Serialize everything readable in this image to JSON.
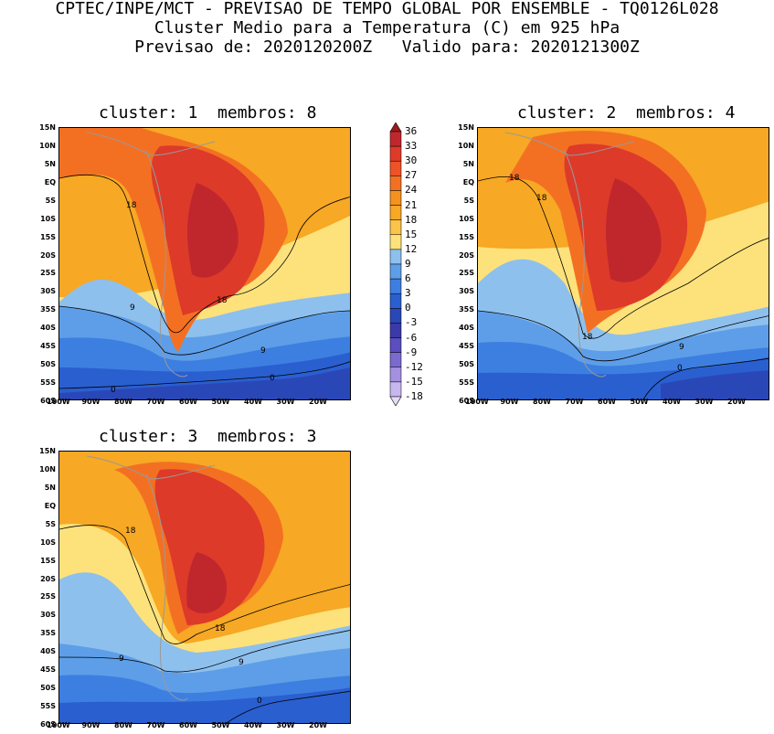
{
  "header": {
    "line1": "CPTEC/INPE/MCT - PREVISAO DE TEMPO GLOBAL POR ENSEMBLE - TQ0126L028",
    "line2": "Cluster Medio para a Temperatura (C) em 925 hPa",
    "line3": "Previsao de: 2020120200Z   Valido para: 2020121300Z"
  },
  "panels": [
    {
      "title": "cluster: 1  membros: 8",
      "contour_labels": [
        "18",
        "18",
        "9",
        "9",
        "0",
        "0"
      ]
    },
    {
      "title": "cluster: 2  membros: 4",
      "contour_labels": [
        "18",
        "18",
        "18",
        "9",
        "0"
      ]
    },
    {
      "title": "cluster: 3  membros: 3",
      "contour_labels": [
        "18",
        "18",
        "9",
        "9",
        "0"
      ]
    }
  ],
  "lat_labels": [
    "15N",
    "10N",
    "5N",
    "EQ",
    "5S",
    "10S",
    "15S",
    "20S",
    "25S",
    "30S",
    "35S",
    "40S",
    "45S",
    "50S",
    "55S",
    "60S"
  ],
  "lon_labels": [
    "100W",
    "90W",
    "80W",
    "70W",
    "60W",
    "50W",
    "40W",
    "30W",
    "20W"
  ],
  "colorbar": {
    "levels": [
      "36",
      "33",
      "30",
      "27",
      "24",
      "21",
      "18",
      "15",
      "12",
      "9",
      "6",
      "3",
      "0",
      "-3",
      "-6",
      "-9",
      "-12",
      "-15",
      "-18"
    ],
    "colors": [
      "#9e1a1a",
      "#c0272d",
      "#dd3a2a",
      "#ee5226",
      "#f37023",
      "#f5921f",
      "#f7a824",
      "#fbc34a",
      "#fde27c",
      "#8ec0ee",
      "#5e9ee8",
      "#3d7fe0",
      "#2a5fd0",
      "#2a47b8",
      "#3b3aa8",
      "#5a4ec0",
      "#7a6ad0",
      "#a490e0",
      "#c7b7ee",
      "#e6dcf6"
    ]
  }
}
